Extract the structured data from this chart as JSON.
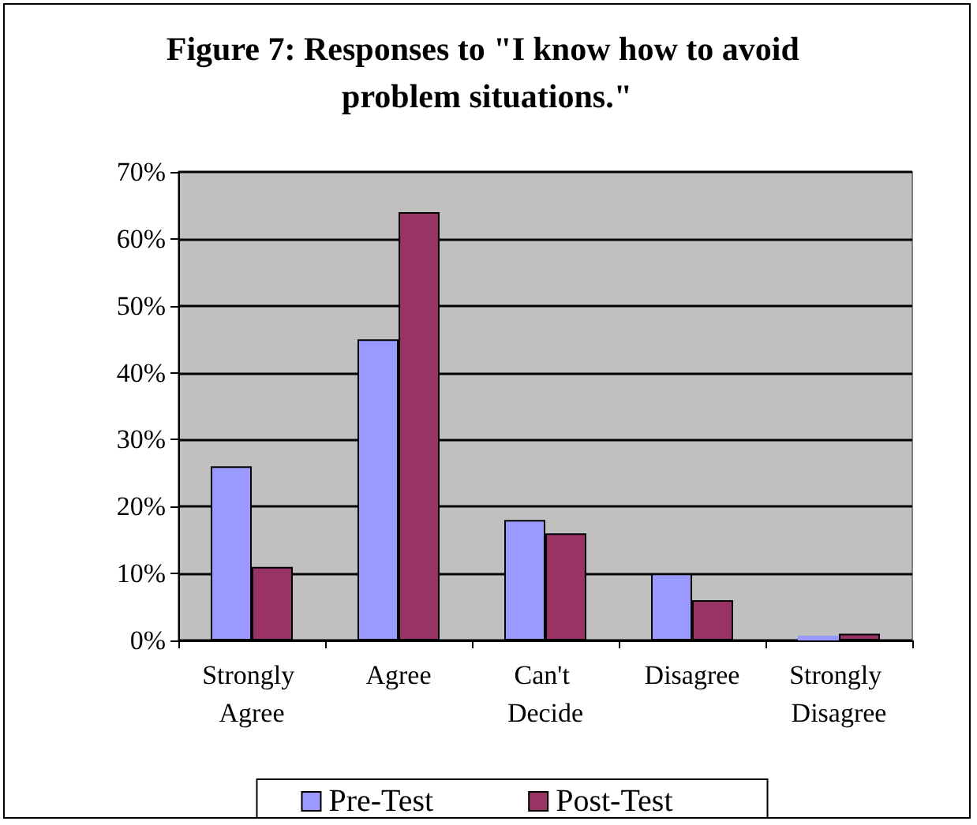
{
  "chart_data": {
    "type": "bar",
    "title": "Figure 7: Responses to \"I know how to avoid problem situations.\"",
    "categories": [
      "Strongly Agree",
      "Agree",
      "Can't Decide",
      "Disagree",
      "Strongly Disagree"
    ],
    "series": [
      {
        "name": "Pre-Test",
        "color": "#9999ff",
        "values": [
          26,
          45,
          18,
          10,
          0
        ]
      },
      {
        "name": "Post-Test",
        "color": "#993366",
        "values": [
          11,
          64,
          16,
          6,
          1
        ]
      }
    ],
    "ylim": [
      0,
      70
    ],
    "yticks": [
      {
        "value": 0,
        "label": "0%"
      },
      {
        "value": 10,
        "label": "10%"
      },
      {
        "value": 20,
        "label": "20%"
      },
      {
        "value": 30,
        "label": "30%"
      },
      {
        "value": 40,
        "label": "40%"
      },
      {
        "value": 50,
        "label": "50%"
      },
      {
        "value": 60,
        "label": "60%"
      },
      {
        "value": 70,
        "label": "70%"
      }
    ],
    "grid": "y",
    "legend": "bottom"
  }
}
